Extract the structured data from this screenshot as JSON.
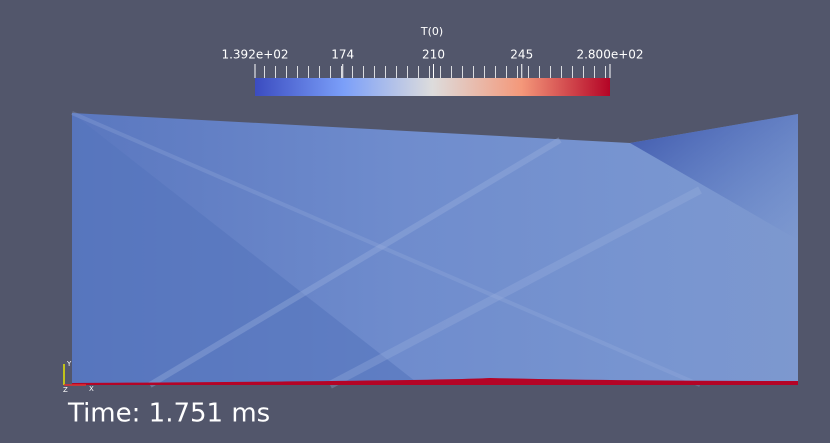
{
  "colorbar": {
    "title": "T(0)",
    "range": [
      139.2,
      280
    ],
    "ticks": [
      {
        "value": 139.2,
        "label": "1.392e+02"
      },
      174,
      210,
      245,
      {
        "value": 280,
        "label": "2.800e+02"
      }
    ]
  },
  "axes": {
    "y": "Y",
    "z": "Z",
    "x": "X"
  },
  "time_label": "Time: 1.751 ms"
}
